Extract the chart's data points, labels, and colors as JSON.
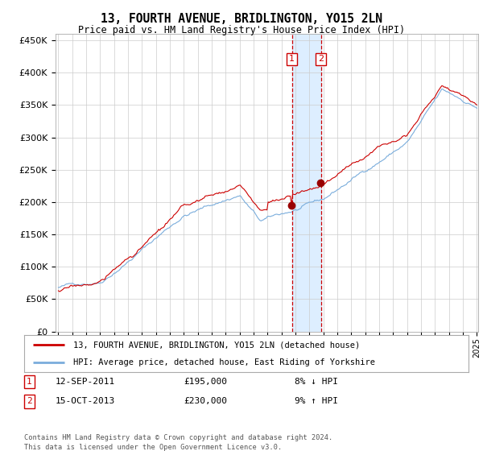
{
  "title": "13, FOURTH AVENUE, BRIDLINGTON, YO15 2LN",
  "subtitle": "Price paid vs. HM Land Registry's House Price Index (HPI)",
  "legend_line1": "13, FOURTH AVENUE, BRIDLINGTON, YO15 2LN (detached house)",
  "legend_line2": "HPI: Average price, detached house, East Riding of Yorkshire",
  "transaction1_date": "12-SEP-2011",
  "transaction1_price": 195000,
  "transaction1_label": "8% ↓ HPI",
  "transaction2_date": "15-OCT-2013",
  "transaction2_price": 230000,
  "transaction2_label": "9% ↑ HPI",
  "footer": "Contains HM Land Registry data © Crown copyright and database right 2024.\nThis data is licensed under the Open Government Licence v3.0.",
  "hpi_color": "#7aaddc",
  "price_color": "#cc0000",
  "dot_color": "#990000",
  "vspan_color": "#ddeeff",
  "vline_color": "#cc0000",
  "bg_color": "#ffffff",
  "grid_color": "#cccccc",
  "ylim": [
    0,
    460000
  ],
  "year_start": 1995,
  "year_end": 2025,
  "t1_year": 2011.75,
  "t2_year": 2013.83
}
